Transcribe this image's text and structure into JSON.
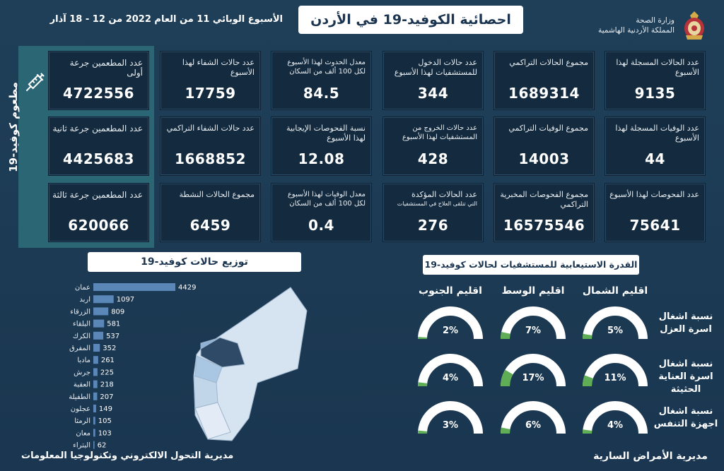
{
  "header": {
    "title": "احصائية الكوفيد-19 في الأردن",
    "week_info": "الأسبوع الوبائي  11 من العام 2022 من  12 - 18 آذار",
    "ministry_line1": "وزارة الصحة",
    "ministry_line2": "المملكة الأردنية الهاشمية"
  },
  "stats": [
    {
      "label": "عدد الحالات المسجلة لهذا الأسبوع",
      "value": "9135"
    },
    {
      "label": "مجموع الحالات التراكمي",
      "value": "1689314"
    },
    {
      "label": "عدد حالات الدخول للمستشفيات لهذا الأسبوع",
      "value": "344"
    },
    {
      "label": "معدل الحدوث لهذا الأسبوع لكل 100 ألف من السكان",
      "value": "84.5"
    },
    {
      "label": "عدد حالات الشفاء لهذا الأسبوع",
      "value": "17759"
    },
    {
      "label": "عدد الوفيات المسجلة لهذا الأسبوع",
      "value": "44"
    },
    {
      "label": "مجموع الوفيات التراكمي",
      "value": "14003"
    },
    {
      "label": "عدد حالات الخروج من المستشفيات لهذا الأسبوع",
      "value": "428"
    },
    {
      "label": "نسبة الفحوصات الإيجابية لهذا الأسبوع",
      "value": "12.08"
    },
    {
      "label": "عدد حالات الشفاء التراكمي",
      "value": "1668852"
    },
    {
      "label": "عدد الفحوصات لهذا الأسبوع",
      "value": "75641"
    },
    {
      "label": "مجموع الفحوصات المخبرية التراكمي",
      "value": "16575546"
    },
    {
      "label": "عدد الحالات المؤكدة",
      "sublabel": "التي تتلقى العلاج في المستشفيات",
      "value": "276"
    },
    {
      "label": "معدل الوفيات لهذا الأسبوع لكل 100 ألف من السكان",
      "value": "0.4"
    },
    {
      "label": "مجموع الحالات النشطة",
      "value": "6459"
    }
  ],
  "vaccination": {
    "side_title": "مطعوم كوفيد-19",
    "icon": "syringe-icon",
    "items": [
      {
        "label": "عدد المطعمين جرعة أولى",
        "value": "4722556"
      },
      {
        "label": "عدد المطعمين جرعة ثانية",
        "value": "4425683"
      },
      {
        "label": "عدد المطعمين جرعة ثالثة",
        "value": "620066"
      }
    ]
  },
  "distribution": {
    "title": "توزيع حالات كوفيد-19"
  },
  "capacity": {
    "title": "القدرة الاستيعابية للمستشفيات لحالات كوفيد-19",
    "regions": [
      "اقليم الشمال",
      "اقليم الوسط",
      "اقليم الجنوب"
    ],
    "rows": [
      {
        "label": "نسبة اشغال اسرة العزل",
        "values": [
          5,
          7,
          2
        ]
      },
      {
        "label": "نسبة اشغال اسرة العناية الحثيثة",
        "values": [
          11,
          17,
          4
        ]
      },
      {
        "label": "نسبة اشغال اجهزة التنفس",
        "values": [
          4,
          6,
          3
        ]
      }
    ]
  },
  "footer": {
    "left": "مديرية التحول الالكتروني وتكنولوجيا المعلومات",
    "right": "مديرية الأمراض السارية"
  },
  "colors": {
    "background": "#1c3a52",
    "card": "#142b3f",
    "vacc_panel": "#2b6675",
    "bar": "#5b87b8",
    "gauge_fill": "#5fae55",
    "gauge_track": "#ffffff",
    "map_light": "#d6e4f2",
    "map_mid": "#a9c6e3",
    "map_dark": "#2e4a66"
  },
  "chart_data": [
    {
      "type": "bar",
      "orientation": "horizontal",
      "categories": [
        "عمان",
        "اربد",
        "الزرقاء",
        "البلقاء",
        "الكرك",
        "المفرق",
        "مادبا",
        "جرش",
        "العقبة",
        "الطفيلة",
        "عجلون",
        "الرمثا",
        "معان",
        "البتراء"
      ],
      "values": [
        4429,
        1097,
        809,
        581,
        537,
        352,
        261,
        225,
        218,
        207,
        149,
        105,
        103,
        62
      ]
    }
  ]
}
